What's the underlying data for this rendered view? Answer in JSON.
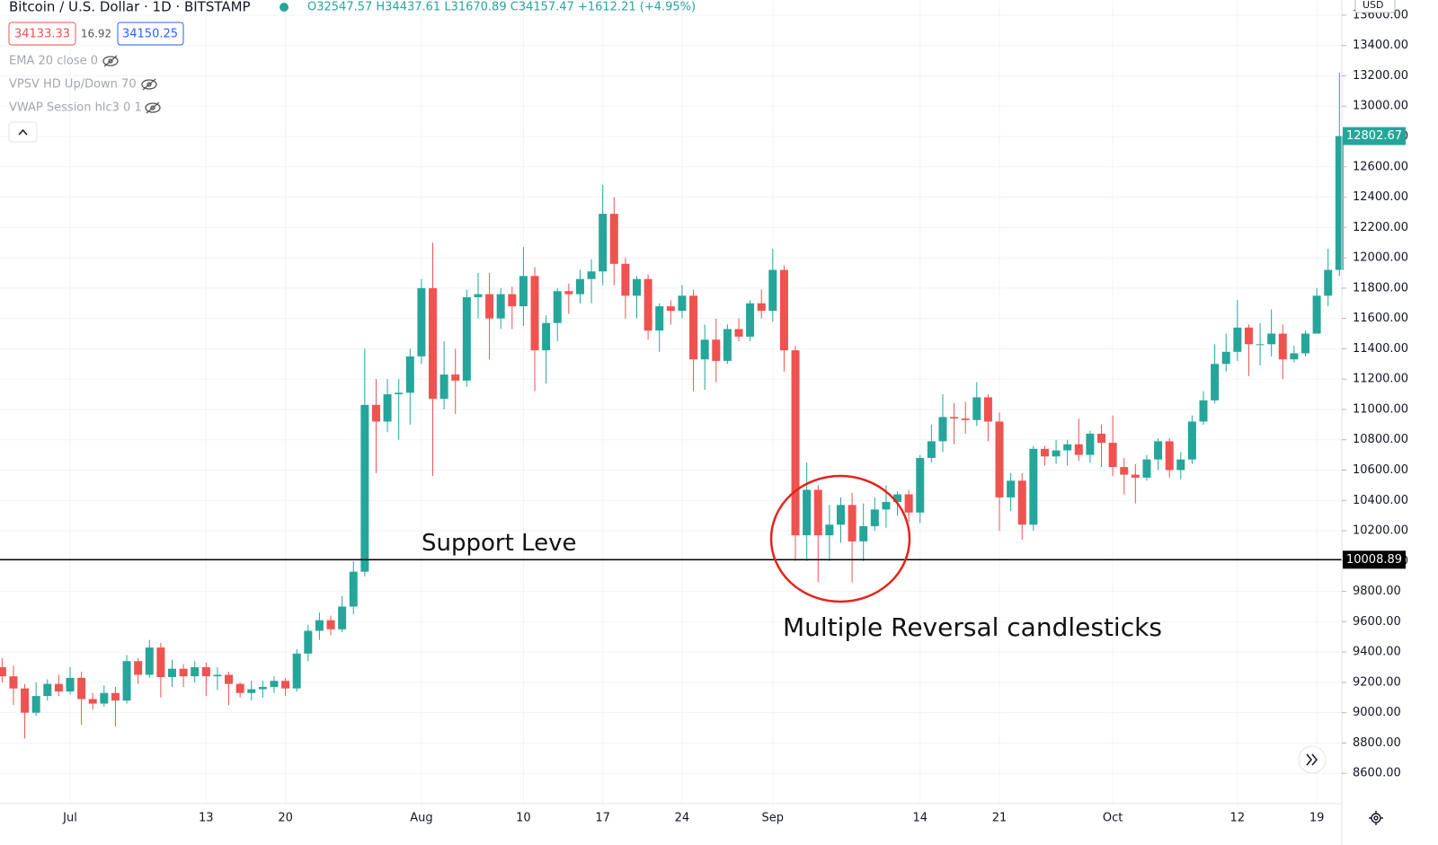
{
  "chart_data": {
    "type": "candlestick",
    "title": "Bitcoin / U.S. Dollar · 1D · BITSTAMP",
    "ohlc_summary": "O32547.57 H34437.61 L31670.89 C34157.47 +1612.21 (+4.95%)",
    "badges": [
      "34133.33",
      "16.92",
      "34150.25"
    ],
    "indicators": [
      "EMA 20 close 0",
      "VPSV HD Up/Down 70",
      "VWAP Session hlc3 0 1"
    ],
    "currency": "USD",
    "up_color": "#26a69a",
    "down_color": "#ef5350",
    "grid": true,
    "ylim": [
      8400,
      13700
    ],
    "yticks": [
      {
        "value": 8600,
        "label": "8600.00"
      },
      {
        "value": 8800,
        "label": "8800.00"
      },
      {
        "value": 9000,
        "label": "9000.00"
      },
      {
        "value": 9200,
        "label": "9200.00"
      },
      {
        "value": 9400,
        "label": "9400.00"
      },
      {
        "value": 9600,
        "label": "9600.00"
      },
      {
        "value": 9800,
        "label": "9800.00"
      },
      {
        "value": 10000,
        "label": "10000.00"
      },
      {
        "value": 10200,
        "label": "10200.00"
      },
      {
        "value": 10400,
        "label": "10400.00"
      },
      {
        "value": 10600,
        "label": "10600.00"
      },
      {
        "value": 10800,
        "label": "10800.00"
      },
      {
        "value": 11000,
        "label": "11000.00"
      },
      {
        "value": 11200,
        "label": "11200.00"
      },
      {
        "value": 11400,
        "label": "11400.00"
      },
      {
        "value": 11600,
        "label": "11600.00"
      },
      {
        "value": 11800,
        "label": "11800.00"
      },
      {
        "value": 12000,
        "label": "12000.00"
      },
      {
        "value": 12200,
        "label": "12200.00"
      },
      {
        "value": 12400,
        "label": "12400.00"
      },
      {
        "value": 12600,
        "label": "12600.00"
      },
      {
        "value": 12800,
        "label": "12800.00"
      },
      {
        "value": 13000,
        "label": "13000.00"
      },
      {
        "value": 13200,
        "label": "13200.00"
      },
      {
        "value": 13400,
        "label": "13400.00"
      },
      {
        "value": 13600,
        "label": "13600.00"
      }
    ],
    "categories": [
      null,
      null,
      null,
      null,
      null,
      null,
      "Jul",
      null,
      null,
      null,
      null,
      null,
      null,
      null,
      null,
      null,
      null,
      null,
      "13",
      null,
      null,
      null,
      null,
      null,
      null,
      "20",
      null,
      null,
      null,
      null,
      null,
      null,
      null,
      null,
      null,
      null,
      null,
      "Aug",
      null,
      null,
      null,
      null,
      null,
      null,
      null,
      null,
      "10",
      null,
      null,
      null,
      null,
      null,
      null,
      "17",
      null,
      null,
      null,
      null,
      null,
      null,
      "24",
      null,
      null,
      null,
      null,
      null,
      null,
      null,
      "Sep",
      null,
      null,
      null,
      null,
      null,
      null,
      null,
      null,
      null,
      null,
      null,
      null,
      "14",
      null,
      null,
      null,
      null,
      null,
      null,
      "21",
      null,
      null,
      null,
      null,
      null,
      null,
      null,
      null,
      null,
      "Oct",
      null,
      null,
      null,
      null,
      null,
      null,
      null,
      null,
      null,
      null,
      "12",
      null,
      null,
      null,
      null,
      null,
      null,
      "19",
      null,
      null
    ],
    "open": [
      9300,
      9240,
      9160,
      9000,
      9110,
      9190,
      9140,
      9230,
      9090,
      9060,
      9130,
      9080,
      9340,
      9250,
      9430,
      9235,
      9290,
      9240,
      9300,
      9240,
      9250,
      9190,
      9130,
      9155,
      9170,
      9210,
      9160,
      9390,
      9540,
      9610,
      9550,
      9700,
      9930,
      11030,
      10920,
      11100,
      11110,
      11350,
      11800,
      11070,
      11230,
      11190,
      11740,
      11760,
      11600,
      11760,
      11680,
      11880,
      11390,
      11570,
      11780,
      11760,
      11860,
      11910,
      12290,
      11960,
      11750,
      11860,
      11520,
      11680,
      11650,
      11750,
      11330,
      11460,
      11320,
      11530,
      11480,
      11700,
      11650,
      11920,
      11390,
      10170,
      10470,
      10170,
      10240,
      10370,
      10130,
      10230,
      10340,
      10390,
      10440,
      10320,
      10680,
      10790,
      10950,
      10940,
      10930,
      11080,
      10920,
      10420,
      10530,
      10240,
      10740,
      10690,
      10730,
      10770,
      10700,
      10840,
      10780,
      10620,
      10570,
      10550,
      10670,
      10790,
      10600,
      10670,
      10920,
      11060,
      11300,
      11380,
      11540,
      11430,
      11430,
      11500,
      11330,
      11370,
      11500,
      11750,
      11920
    ],
    "high": [
      9360,
      9310,
      9190,
      9200,
      9220,
      9250,
      9300,
      9270,
      9130,
      9180,
      9170,
      9380,
      9360,
      9480,
      9460,
      9350,
      9320,
      9340,
      9330,
      9300,
      9270,
      9200,
      9210,
      9210,
      9240,
      9230,
      9420,
      9580,
      9660,
      9640,
      9770,
      10000,
      11400,
      11200,
      11200,
      11200,
      11400,
      11860,
      12100,
      11450,
      11400,
      11790,
      11900,
      11900,
      11800,
      11810,
      12070,
      11940,
      11620,
      11800,
      11830,
      11920,
      11990,
      12480,
      12400,
      12000,
      11880,
      11890,
      11700,
      11720,
      11820,
      11790,
      11560,
      11600,
      11560,
      11600,
      11720,
      11790,
      12060,
      11950,
      11420,
      10650,
      10500,
      10370,
      10420,
      10450,
      10380,
      10420,
      10500,
      10460,
      10470,
      10700,
      10900,
      11100,
      11040,
      11050,
      11180,
      11100,
      10980,
      10580,
      10580,
      10760,
      10760,
      10800,
      10800,
      10940,
      10860,
      10900,
      10960,
      10680,
      10640,
      10700,
      10810,
      10810,
      10720,
      10960,
      11120,
      11430,
      11500,
      11720,
      11560,
      11570,
      11660,
      11560,
      11420,
      11520,
      11800,
      12060,
      13220
    ],
    "low": [
      9200,
      9050,
      8830,
      8980,
      9080,
      9110,
      9120,
      8920,
      9020,
      9040,
      8910,
      9060,
      9190,
      9230,
      9100,
      9170,
      9170,
      9200,
      9110,
      9150,
      9050,
      9100,
      9080,
      9100,
      9130,
      9110,
      9140,
      9340,
      9480,
      9510,
      9530,
      9650,
      9900,
      10580,
      10850,
      10800,
      10900,
      11300,
      10560,
      11000,
      10970,
      11150,
      11600,
      11330,
      11530,
      11530,
      11550,
      11120,
      11170,
      11450,
      11630,
      11700,
      11700,
      11820,
      11820,
      11600,
      11600,
      11460,
      11380,
      11560,
      11600,
      11120,
      11130,
      11180,
      11300,
      11450,
      11450,
      11600,
      11580,
      11250,
      10000,
      10000,
      9860,
      10000,
      10120,
      9860,
      10000,
      10200,
      10220,
      10300,
      10260,
      10250,
      10650,
      10720,
      10770,
      10840,
      10890,
      10790,
      10200,
      10330,
      10140,
      10200,
      10630,
      10640,
      10630,
      10660,
      10650,
      10620,
      10560,
      10440,
      10380,
      10530,
      10600,
      10550,
      10540,
      10640,
      10900,
      11040,
      11250,
      11320,
      11220,
      11290,
      11350,
      11200,
      11310,
      11350,
      11500,
      11680,
      11880
    ],
    "close": [
      9240,
      9160,
      9000,
      9110,
      9190,
      9140,
      9230,
      9090,
      9060,
      9130,
      9080,
      9340,
      9250,
      9430,
      9235,
      9290,
      9240,
      9300,
      9240,
      9250,
      9190,
      9130,
      9155,
      9170,
      9210,
      9160,
      9390,
      9540,
      9610,
      9550,
      9700,
      9930,
      11030,
      10920,
      11100,
      11110,
      11350,
      11800,
      11070,
      11230,
      11190,
      11740,
      11760,
      11600,
      11760,
      11680,
      11880,
      11390,
      11570,
      11780,
      11760,
      11860,
      11910,
      12290,
      11960,
      11750,
      11860,
      11520,
      11680,
      11650,
      11750,
      11330,
      11460,
      11320,
      11530,
      11480,
      11700,
      11650,
      11920,
      11390,
      10170,
      10470,
      10170,
      10240,
      10370,
      10130,
      10230,
      10340,
      10390,
      10440,
      10320,
      10680,
      10790,
      10950,
      10940,
      10930,
      11080,
      10920,
      10420,
      10530,
      10240,
      10740,
      10690,
      10730,
      10770,
      10700,
      10840,
      10780,
      10620,
      10570,
      10550,
      10670,
      10790,
      10600,
      10670,
      10920,
      11060,
      11300,
      11380,
      11540,
      11430,
      11430,
      11500,
      11330,
      11370,
      11500,
      11750,
      11920,
      12802.67
    ],
    "annotations": {
      "support_label": "Support Leve",
      "support_value": 10008.89,
      "circle_label": "Multiple Reversal candlesticks"
    }
  }
}
